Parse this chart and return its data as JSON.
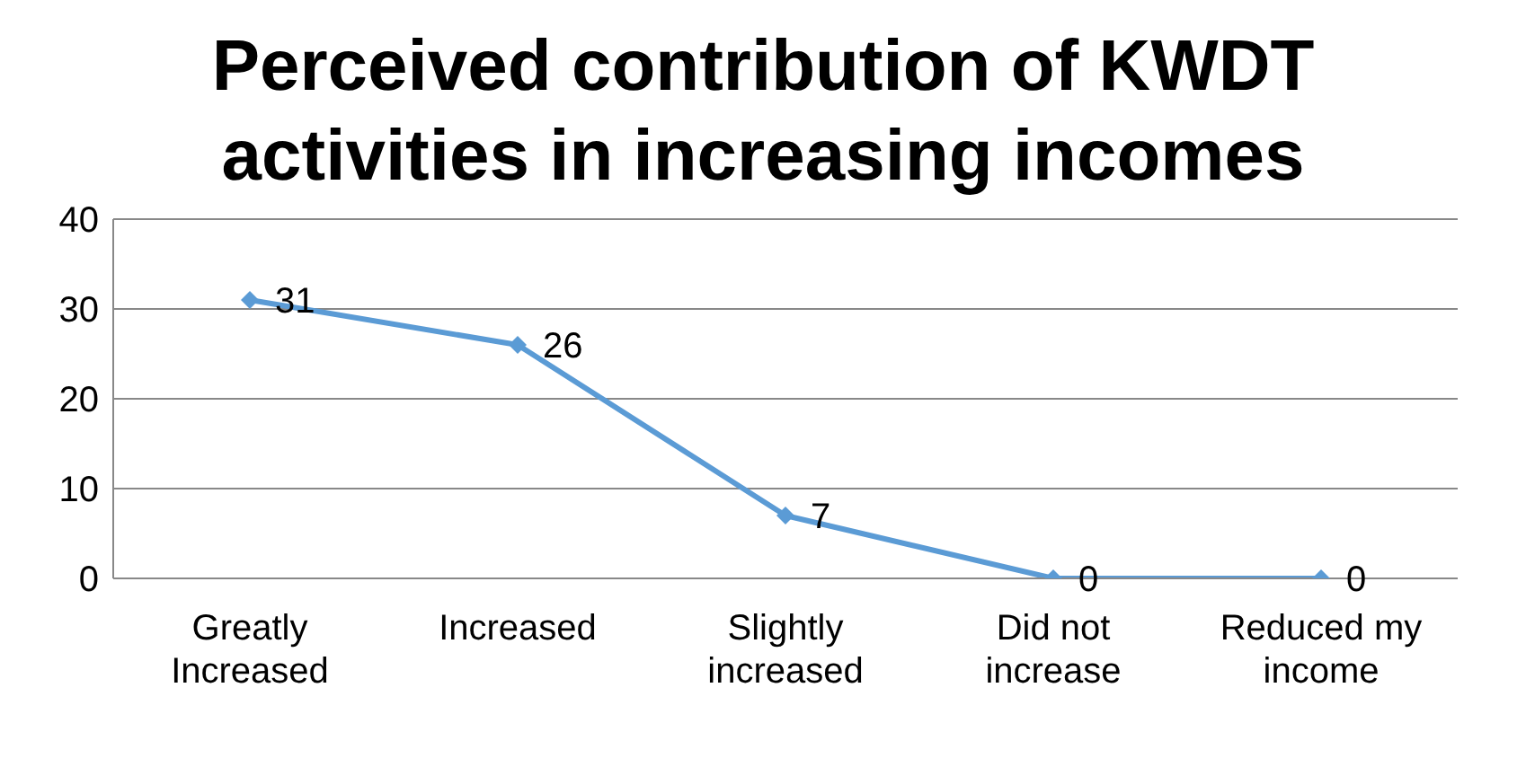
{
  "chart_data": {
    "type": "line",
    "title": "Perceived contribution of KWDT activities in increasing incomes",
    "categories": [
      "Greatly Increased",
      "Increased",
      "Slightly increased",
      "Did not increase",
      "Reduced my income"
    ],
    "values": [
      31,
      26,
      7,
      0,
      0
    ],
    "color": "#5b9bd5",
    "ylim": [
      0,
      40
    ],
    "yticks": [
      0,
      10,
      20,
      30,
      40
    ],
    "grid": "y",
    "marker": "diamond",
    "data_labels": true
  }
}
